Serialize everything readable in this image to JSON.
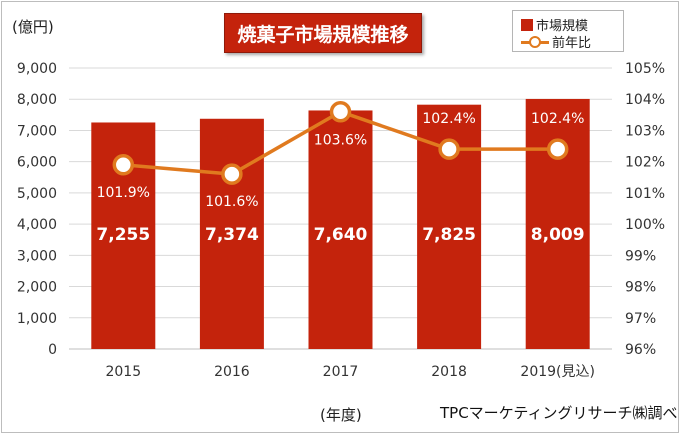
{
  "chart_data": {
    "type": "bar",
    "title": "焼菓子市場規模推移",
    "categories": [
      "2015",
      "2016",
      "2017",
      "2018",
      "2019(見込)"
    ],
    "series": [
      {
        "name": "市場規模",
        "type": "bar",
        "values": [
          7255,
          7374,
          7640,
          7825,
          8009
        ],
        "labels": [
          "7,255",
          "7,374",
          "7,640",
          "7,825",
          "8,009"
        ]
      },
      {
        "name": "前年比",
        "type": "line",
        "axis": "right",
        "values": [
          101.9,
          101.6,
          103.6,
          102.4,
          102.4
        ],
        "labels": [
          "101.9%",
          "101.6%",
          "103.6%",
          "102.4%",
          "102.4%"
        ]
      }
    ],
    "ylabel": "(億円)",
    "xlabel": "(年度)",
    "ylim": [
      0,
      9000
    ],
    "yticks": [
      "0",
      "1,000",
      "2,000",
      "3,000",
      "4,000",
      "5,000",
      "6,000",
      "7,000",
      "8,000",
      "9,000"
    ],
    "y2lim": [
      96,
      105
    ],
    "y2ticks": [
      "96%",
      "97%",
      "98%",
      "99%",
      "100%",
      "101%",
      "102%",
      "103%",
      "104%",
      "105%"
    ],
    "grid": true,
    "legend": "top-right"
  },
  "source": "TPCマーケティングリサーチ㈱調べ",
  "colors": {
    "bar": "#c4230c",
    "line": "#e07a1f",
    "grid": "#d9d9d9"
  }
}
